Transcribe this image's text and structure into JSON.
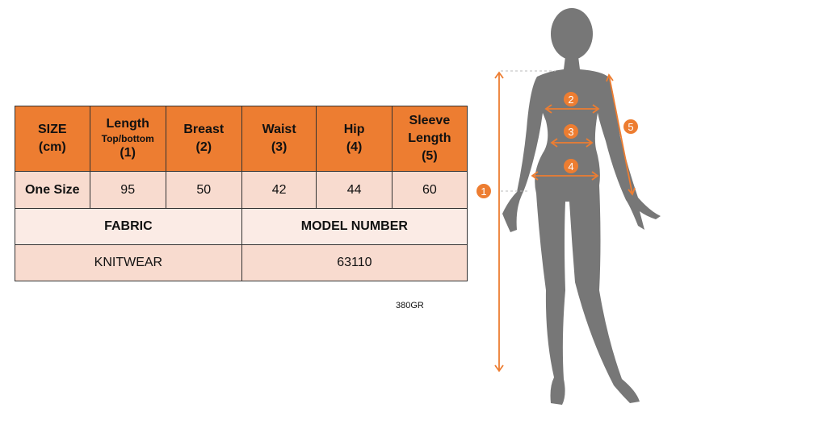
{
  "table": {
    "headers": [
      {
        "main": "SIZE",
        "sub": "",
        "num": "(cm)"
      },
      {
        "main": "Length",
        "sub": "Top/bottom",
        "num": "(1)"
      },
      {
        "main": "Breast",
        "sub": "",
        "num": "(2)"
      },
      {
        "main": "Waist",
        "sub": "",
        "num": "(3)"
      },
      {
        "main": "Hip",
        "sub": "",
        "num": "(4)"
      },
      {
        "main": "Sleeve Length",
        "sub": "",
        "num": "(5)"
      }
    ],
    "row": [
      "One Size",
      "95",
      "50",
      "42",
      "44",
      "60"
    ],
    "fabric_label": "FABRIC",
    "model_label": "MODEL NUMBER",
    "fabric_value": "KNITWEAR",
    "model_value": "63110"
  },
  "weight": "380GR",
  "figure": {
    "markers": [
      "1",
      "2",
      "3",
      "4",
      "5"
    ],
    "accent_color": "#ED7D31",
    "silhouette_color": "#777777"
  }
}
